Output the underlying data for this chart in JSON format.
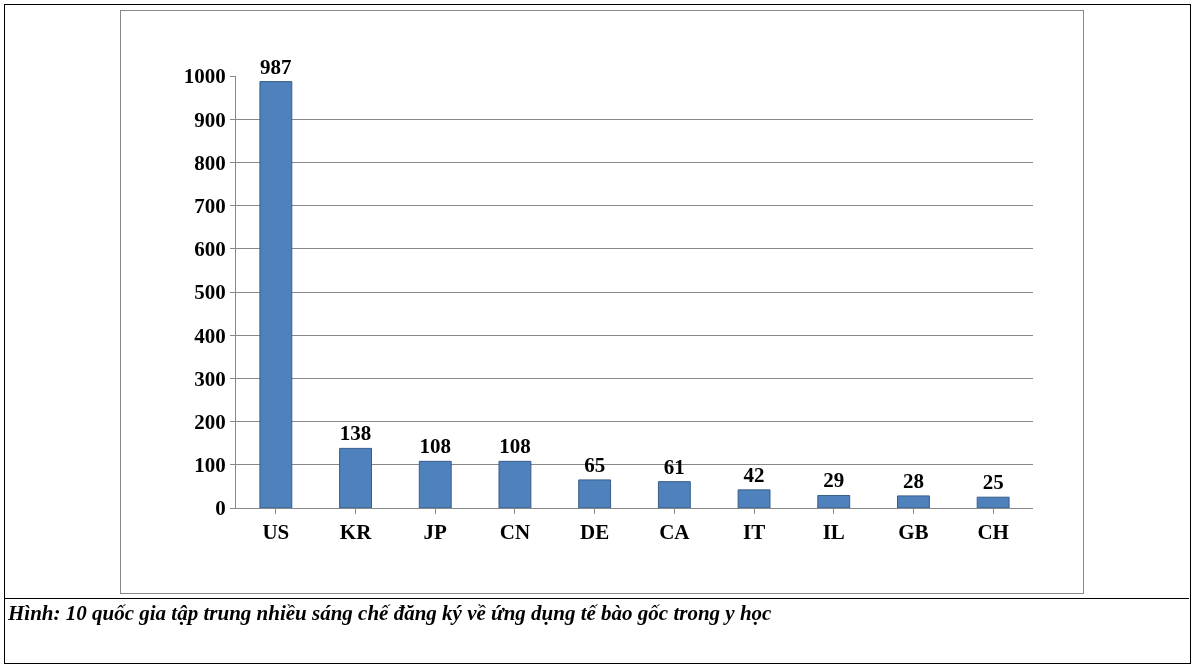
{
  "chart_data": {
    "type": "bar",
    "categories": [
      "US",
      "KR",
      "JP",
      "CN",
      "DE",
      "CA",
      "IT",
      "IL",
      "GB",
      "CH"
    ],
    "values": [
      987,
      138,
      108,
      108,
      65,
      61,
      42,
      29,
      28,
      25
    ],
    "color": "#4f81bd",
    "ylim": [
      0,
      1000
    ],
    "yticks": [
      0,
      100,
      200,
      300,
      400,
      500,
      600,
      700,
      800,
      900,
      1000
    ],
    "grid": "y",
    "data_labels": true,
    "annotations": [
      "Hình: 10 quốc gia tập trung nhiều sáng chế đăng ký về ứng dụng tế bào gốc trong y học"
    ]
  }
}
